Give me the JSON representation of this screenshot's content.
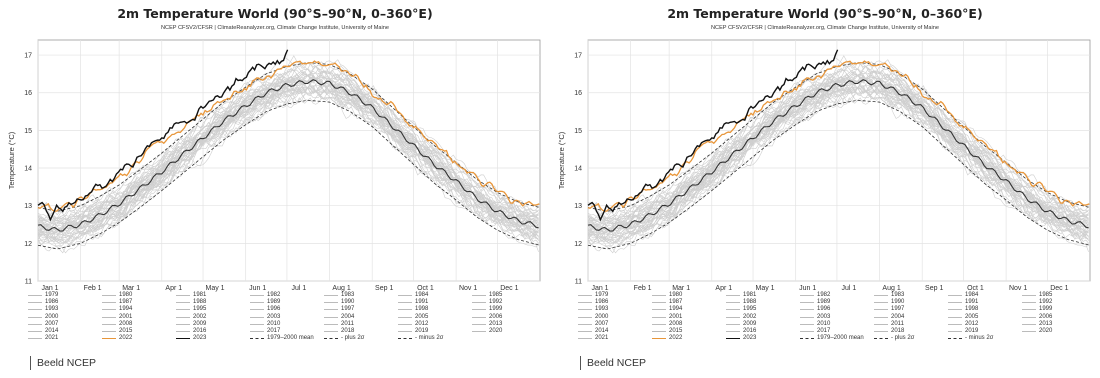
{
  "panels": [
    {
      "title": "2m Temperature World (90°S–90°N, 0–360°E)",
      "subtitle": "NCEP CFSV2/CFSR | ClimateReanalyzer.org, Climate Change Institute, University of Maine",
      "credit": "Beeld NCEP"
    },
    {
      "title": "2m Temperature World (90°S–90°N, 0–360°E)",
      "subtitle": "NCEP CFSV2/CFSR | ClimateReanalyzer.org, Climate Change Institute, University of Maine",
      "credit": "Beeld NCEP"
    }
  ],
  "colors": {
    "past_years": "#cfcfcf",
    "year_2022": "#e8963a",
    "year_2023": "#111111",
    "mean": "#333333",
    "bands": "#333333"
  },
  "chart_data": {
    "type": "line",
    "title": "2m Temperature World (90°S–90°N, 0–360°E)",
    "subtitle": "NCEP CFSV2/CFSR | ClimateReanalyzer.org, Climate Change Institute, University of Maine",
    "ylabel": "Temperature (°C)",
    "xlabel": "",
    "ylim": [
      11,
      17.4
    ],
    "yticks": [
      11,
      12,
      13,
      14,
      15,
      16,
      17
    ],
    "xticks": [
      "Jan 1",
      "Feb 1",
      "Mar 1",
      "Apr 1",
      "May 1",
      "Jun 1",
      "Jul 1",
      "Aug 1",
      "Sep 1",
      "Oct 1",
      "Nov 1",
      "Dec 1"
    ],
    "xtick_days": [
      1,
      32,
      60,
      91,
      121,
      152,
      182,
      213,
      244,
      274,
      305,
      335
    ],
    "x_range_days": [
      1,
      366
    ],
    "grid": true,
    "legend_position": "bottom",
    "legend_entries": [
      "1979",
      "1980",
      "1981",
      "1982",
      "1983",
      "1984",
      "1985",
      "1986",
      "1987",
      "1988",
      "1989",
      "1990",
      "1991",
      "1992",
      "1993",
      "1994",
      "1995",
      "1996",
      "1997",
      "1998",
      "1999",
      "2000",
      "2001",
      "2002",
      "2003",
      "2004",
      "2005",
      "2006",
      "2007",
      "2008",
      "2009",
      "2010",
      "2011",
      "2012",
      "2013",
      "2014",
      "2015",
      "2016",
      "2017",
      "2018",
      "2019",
      "2020",
      "2021",
      "2022",
      "2023",
      "1979–2000 mean",
      "plus 2σ",
      "minus 2σ"
    ],
    "series": [
      {
        "name": "2023",
        "x": [
          1,
          5,
          10,
          15,
          20,
          25,
          32,
          40,
          50,
          60,
          70,
          80,
          91,
          100,
          110,
          121,
          130,
          140,
          152,
          160,
          165,
          170,
          175,
          180,
          183
        ],
        "y": [
          13.05,
          12.95,
          12.75,
          12.95,
          12.85,
          13.1,
          13.2,
          13.45,
          13.55,
          13.9,
          14.1,
          14.45,
          14.9,
          15.1,
          15.25,
          15.55,
          15.8,
          16.1,
          16.45,
          16.75,
          16.65,
          16.75,
          16.85,
          16.8,
          17.0
        ]
      },
      {
        "name": "2022",
        "x": [
          1,
          15,
          32,
          45,
          60,
          75,
          91,
          105,
          121,
          135,
          152,
          165,
          182,
          195,
          205,
          213,
          225,
          244,
          260,
          274,
          290,
          305,
          320,
          335,
          350,
          366
        ],
        "y": [
          13.0,
          12.9,
          13.15,
          13.4,
          13.75,
          14.2,
          14.65,
          15.05,
          15.45,
          15.8,
          16.15,
          16.4,
          16.65,
          16.8,
          16.85,
          16.75,
          16.6,
          16.05,
          15.6,
          15.05,
          14.6,
          14.15,
          13.7,
          13.4,
          13.1,
          12.95
        ]
      },
      {
        "name": "1979–2000 mean",
        "x": [
          1,
          15,
          32,
          46,
          60,
          75,
          91,
          106,
          121,
          136,
          152,
          167,
          182,
          197,
          213,
          228,
          244,
          259,
          274,
          289,
          305,
          320,
          335,
          350,
          366
        ],
        "y": [
          12.45,
          12.35,
          12.5,
          12.75,
          13.05,
          13.45,
          13.9,
          14.35,
          14.8,
          15.25,
          15.65,
          16.0,
          16.2,
          16.3,
          16.25,
          16.0,
          15.6,
          15.1,
          14.6,
          14.1,
          13.65,
          13.2,
          12.85,
          12.6,
          12.45
        ]
      },
      {
        "name": "plus 2σ",
        "x": [
          1,
          15,
          32,
          46,
          60,
          75,
          91,
          106,
          121,
          136,
          152,
          167,
          182,
          197,
          213,
          228,
          244,
          259,
          274,
          289,
          305,
          320,
          335,
          350,
          366
        ],
        "y": [
          12.95,
          12.85,
          13.0,
          13.25,
          13.55,
          13.95,
          14.4,
          14.85,
          15.3,
          15.75,
          16.15,
          16.5,
          16.7,
          16.8,
          16.75,
          16.5,
          16.1,
          15.6,
          15.1,
          14.6,
          14.15,
          13.7,
          13.35,
          13.1,
          12.95
        ]
      },
      {
        "name": "minus 2σ",
        "x": [
          1,
          15,
          32,
          46,
          60,
          75,
          91,
          106,
          121,
          136,
          152,
          167,
          182,
          197,
          213,
          228,
          244,
          259,
          274,
          289,
          305,
          320,
          335,
          350,
          366
        ],
        "y": [
          11.95,
          11.85,
          12.0,
          12.25,
          12.55,
          12.95,
          13.4,
          13.85,
          14.3,
          14.75,
          15.15,
          15.5,
          15.7,
          15.8,
          15.75,
          15.5,
          15.1,
          14.6,
          14.1,
          13.6,
          13.15,
          12.7,
          12.35,
          12.1,
          11.95
        ]
      }
    ]
  }
}
